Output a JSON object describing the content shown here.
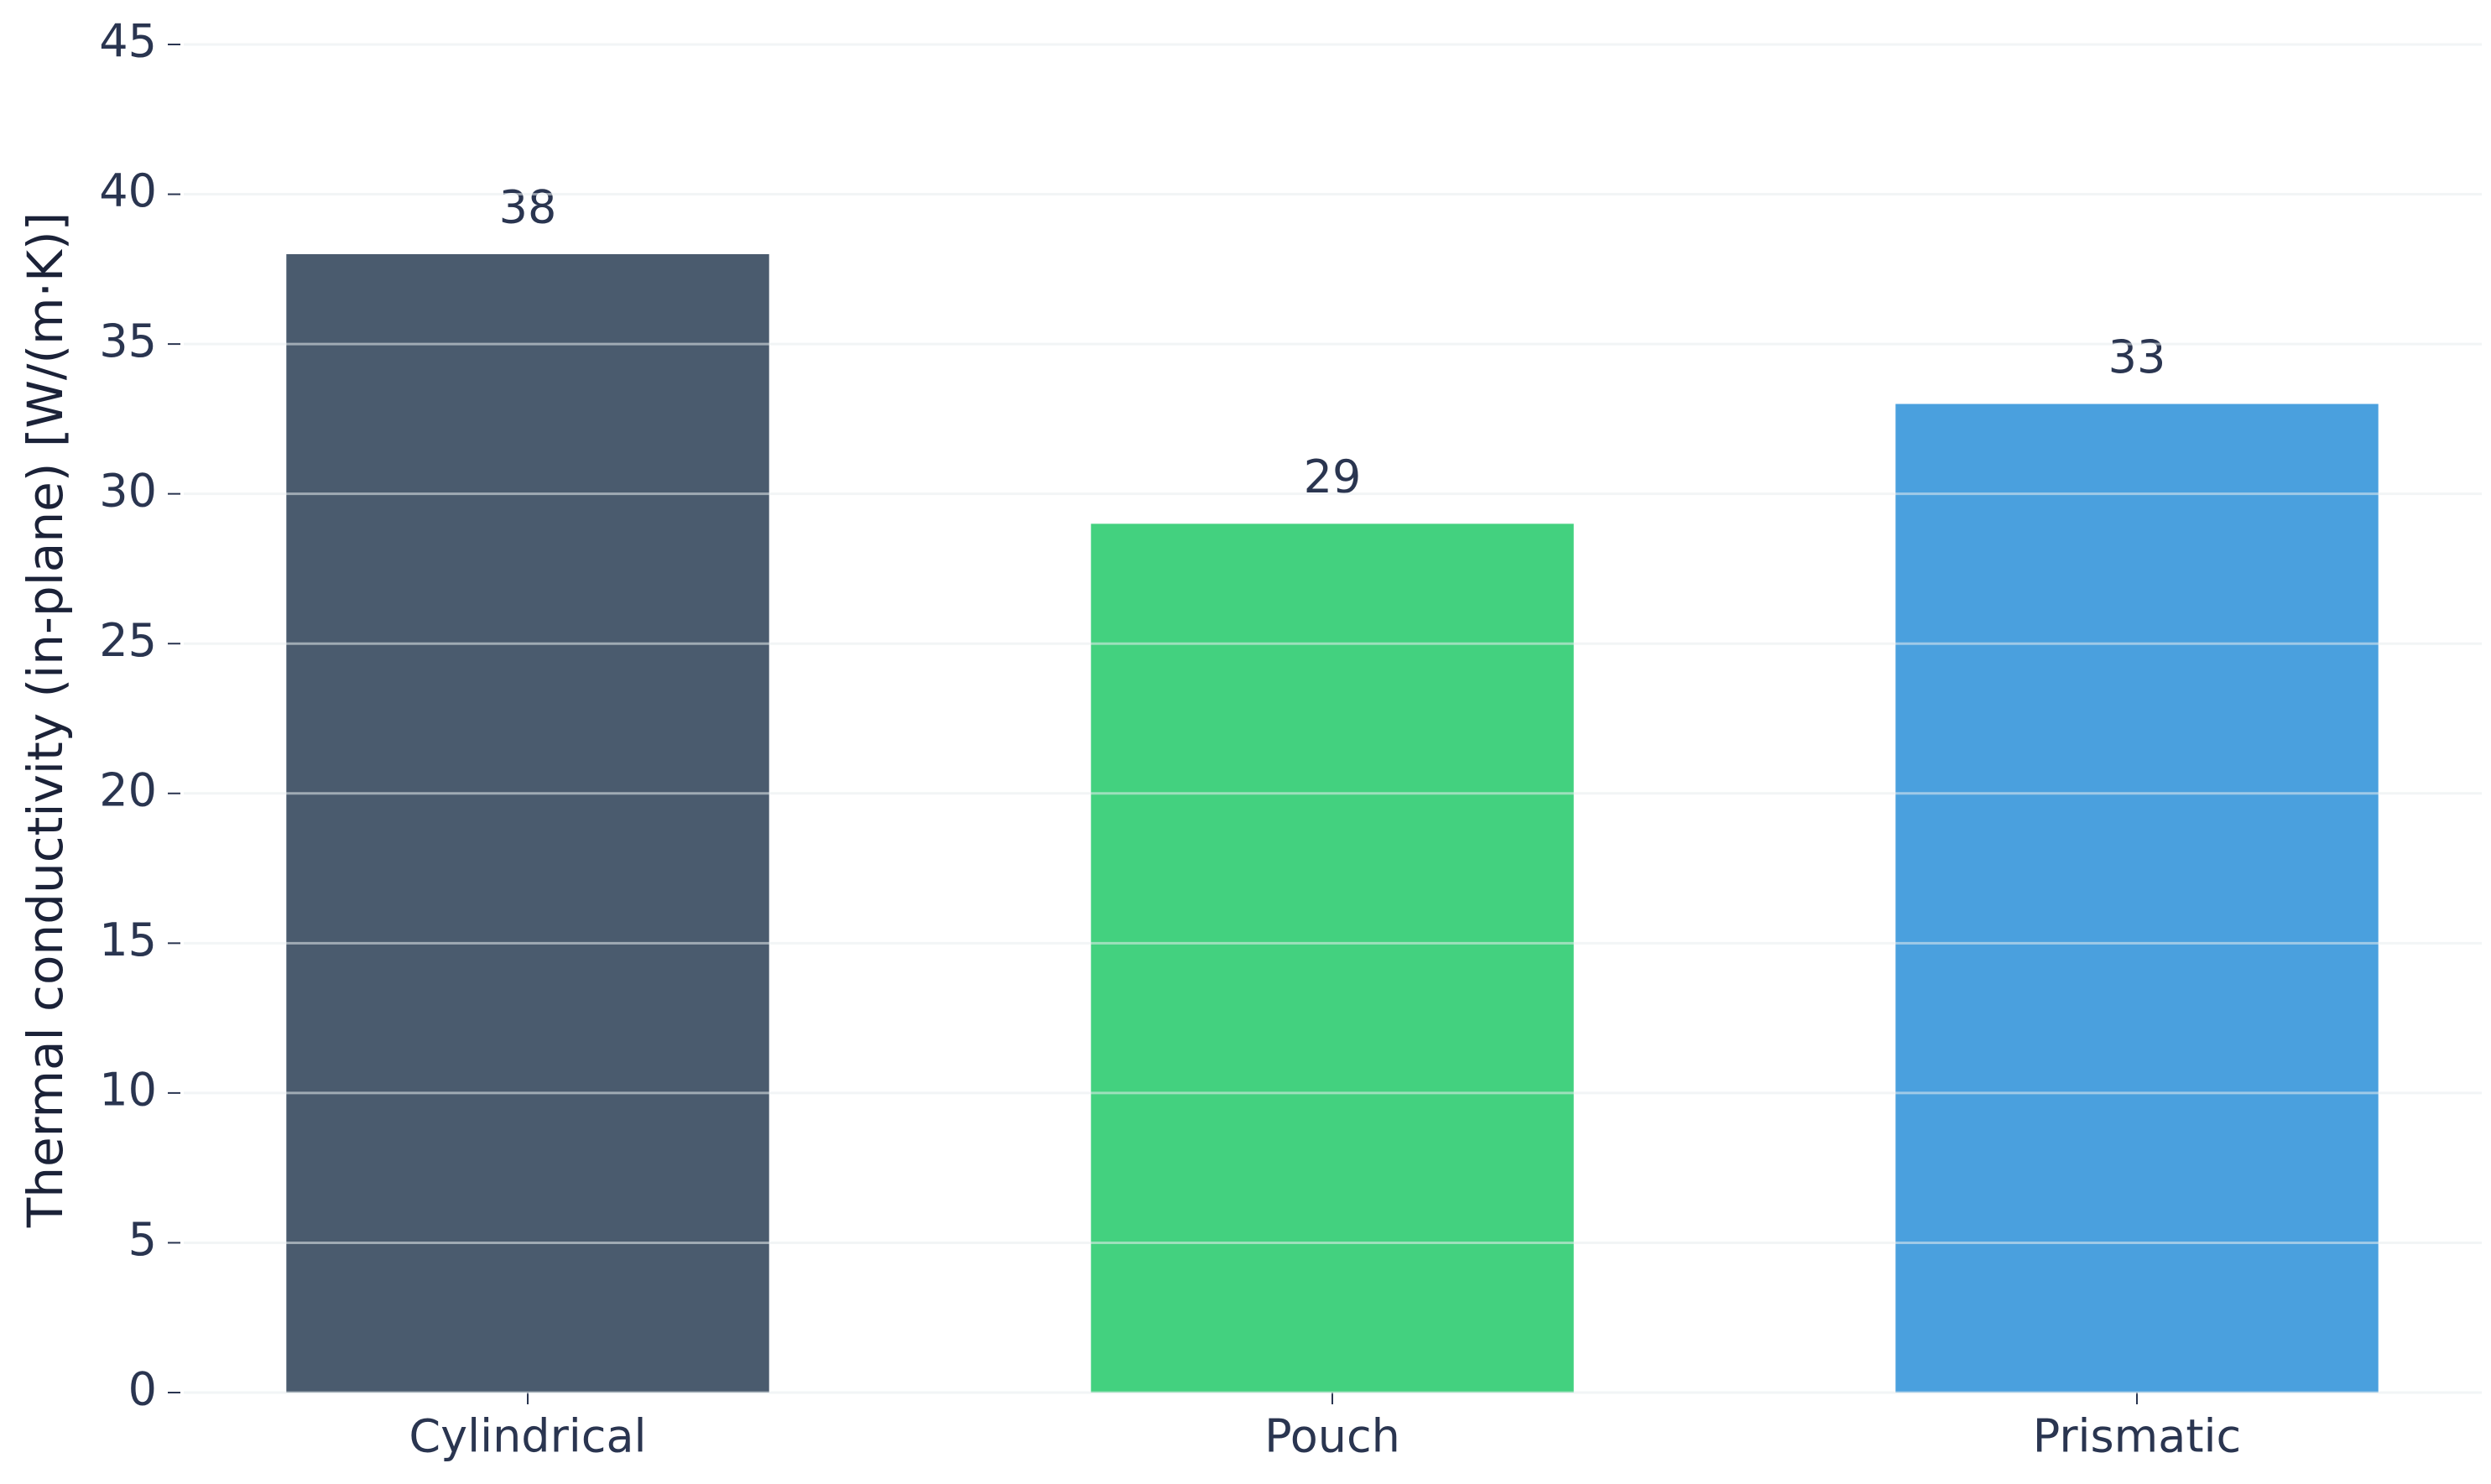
{
  "chart_data": {
    "type": "bar",
    "y_label": "Thermal conductivity (in-plane) [W/(m·K)]",
    "categories": [
      "Cylindrical",
      "Pouch",
      "Prismatic"
    ],
    "values": [
      38,
      29,
      33
    ],
    "colors": [
      "#4a5b6e",
      "#43d17f",
      "#4aa0de"
    ],
    "ylim": [
      0,
      45
    ],
    "yticks": [
      0,
      5,
      10,
      15,
      20,
      25,
      30,
      35,
      40,
      45
    ],
    "grid": true
  }
}
